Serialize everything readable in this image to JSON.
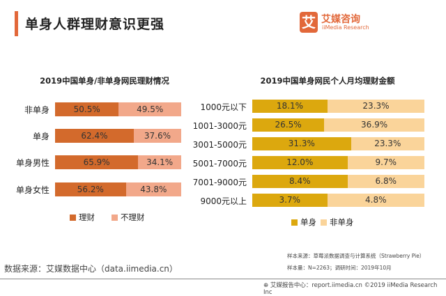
{
  "header": {
    "title": "单身人群理财意识更强",
    "logo_cn": "艾媒咨询",
    "logo_en": "iiMedia Research",
    "logo_mark": "艾"
  },
  "chart_data": [
    {
      "type": "bar",
      "stacked": true,
      "orientation": "horizontal",
      "title": "2019中国单身/非单身网民理财情况",
      "categories": [
        "非单身",
        "单身",
        "单身男性",
        "单身女性"
      ],
      "series": [
        {
          "name": "理财",
          "values": [
            50.5,
            62.4,
            65.9,
            56.2
          ],
          "labels": [
            "50.5%",
            "62.4%",
            "65.9%",
            "56.2%"
          ],
          "color": "#d36a2c"
        },
        {
          "name": "不理财",
          "values": [
            49.5,
            37.6,
            34.1,
            43.8
          ],
          "labels": [
            "49.5%",
            "37.6%",
            "34.1%",
            "43.8%"
          ],
          "color": "#f2a88a"
        }
      ],
      "legend": "bottom"
    },
    {
      "type": "bar",
      "stacked": true,
      "orientation": "horizontal",
      "title": "2019中国单身网民个人月均理财金额",
      "categories": [
        "1000元以下",
        "1001-3000元",
        "3001-5000元",
        "5001-7000元",
        "7001-9000元",
        "9000元以上"
      ],
      "series": [
        {
          "name": "单身",
          "values": [
            18.1,
            26.5,
            31.3,
            12.0,
            8.4,
            3.7
          ],
          "labels": [
            "18.1%",
            "26.5%",
            "31.3%",
            "12.0%",
            "8.4%",
            "3.7%"
          ],
          "color": "#dca80e"
        },
        {
          "name": "非单身",
          "values": [
            23.3,
            36.9,
            23.3,
            9.7,
            6.8,
            4.8
          ],
          "labels": [
            "23.3%",
            "36.9%",
            "23.3%",
            "9.7%",
            "6.8%",
            "4.8%"
          ],
          "color": "#fad49a"
        }
      ],
      "legend": "bottom"
    }
  ],
  "footer": {
    "source": "数据来源：艾媒数据中心（data.iimedia.cn）",
    "sample_source": "样本来源：草莓派数据调查与计算系统（Strawberry Pie）",
    "sample_size": "样本量：N=2263；调研时间：2019年10月",
    "copyright": "⊕ 艾媒报告中心：report.iimedia.cn   ©2019  iiMedia Research  Inc"
  }
}
